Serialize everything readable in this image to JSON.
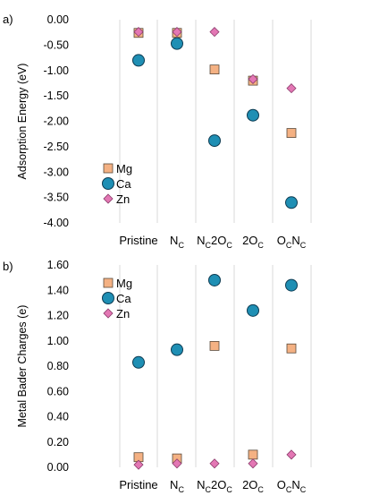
{
  "chart_data": [
    {
      "type": "scatter",
      "panel_label": "a)",
      "title": "",
      "ylabel": "Adsorption Energy (eV)",
      "xlabel": "",
      "categories": [
        {
          "base": "Pristine",
          "sub": ""
        },
        {
          "base": "N",
          "sub": "C"
        },
        {
          "base": "N",
          "sub": "C",
          "base2": "2O",
          "sub2": "C"
        },
        {
          "base": "2O",
          "sub": "C"
        },
        {
          "base": "O",
          "sub": "C",
          "base2": "N",
          "sub2": "C"
        }
      ],
      "ylim": [
        -4.0,
        0.0
      ],
      "yticks": [
        0.0,
        -0.5,
        -1.0,
        -1.5,
        -2.0,
        -2.5,
        -3.0,
        -3.5,
        -4.0
      ],
      "ytick_labels": [
        "0.00",
        "-0.50",
        "-1.00",
        "-1.50",
        "-2.00",
        "-2.50",
        "-3.00",
        "-3.50",
        "-4.00"
      ],
      "grid": "vertical",
      "legend_position": "bottom-left",
      "series": [
        {
          "name": "Mg",
          "marker": "square",
          "color": "#f4b183",
          "values": [
            -0.26,
            -0.26,
            -0.98,
            -1.2,
            -2.23
          ]
        },
        {
          "name": "Ca",
          "marker": "circle",
          "color": "#1f8fb4",
          "values": [
            -0.8,
            -0.47,
            -2.38,
            -1.88,
            -3.6
          ]
        },
        {
          "name": "Zn",
          "marker": "diamond",
          "color": "#e377b4",
          "values": [
            -0.24,
            -0.24,
            -0.24,
            -1.17,
            -1.35
          ]
        }
      ]
    },
    {
      "type": "scatter",
      "panel_label": "b)",
      "title": "",
      "ylabel": "Metal Bader Charges (e)",
      "xlabel": "",
      "categories": [
        {
          "base": "Pristine",
          "sub": ""
        },
        {
          "base": "N",
          "sub": "C"
        },
        {
          "base": "N",
          "sub": "C",
          "base2": "2O",
          "sub2": "C"
        },
        {
          "base": "2O",
          "sub": "C"
        },
        {
          "base": "O",
          "sub": "C",
          "base2": "N",
          "sub2": "C"
        }
      ],
      "ylim": [
        0.0,
        1.6
      ],
      "yticks": [
        0.0,
        0.2,
        0.4,
        0.6,
        0.8,
        1.0,
        1.2,
        1.4,
        1.6
      ],
      "ytick_labels": [
        "0.00",
        "0.20",
        "0.40",
        "0.60",
        "0.80",
        "1.00",
        "1.20",
        "1.40",
        "1.60"
      ],
      "grid": "vertical",
      "legend_position": "top-left",
      "series": [
        {
          "name": "Mg",
          "marker": "square",
          "color": "#f4b183",
          "values": [
            0.08,
            0.07,
            0.96,
            0.1,
            0.94
          ]
        },
        {
          "name": "Ca",
          "marker": "circle",
          "color": "#1f8fb4",
          "values": [
            0.83,
            0.93,
            1.48,
            1.24,
            1.44
          ]
        },
        {
          "name": "Zn",
          "marker": "diamond",
          "color": "#e377b4",
          "values": [
            0.02,
            0.03,
            0.03,
            0.03,
            0.1
          ]
        }
      ]
    }
  ]
}
